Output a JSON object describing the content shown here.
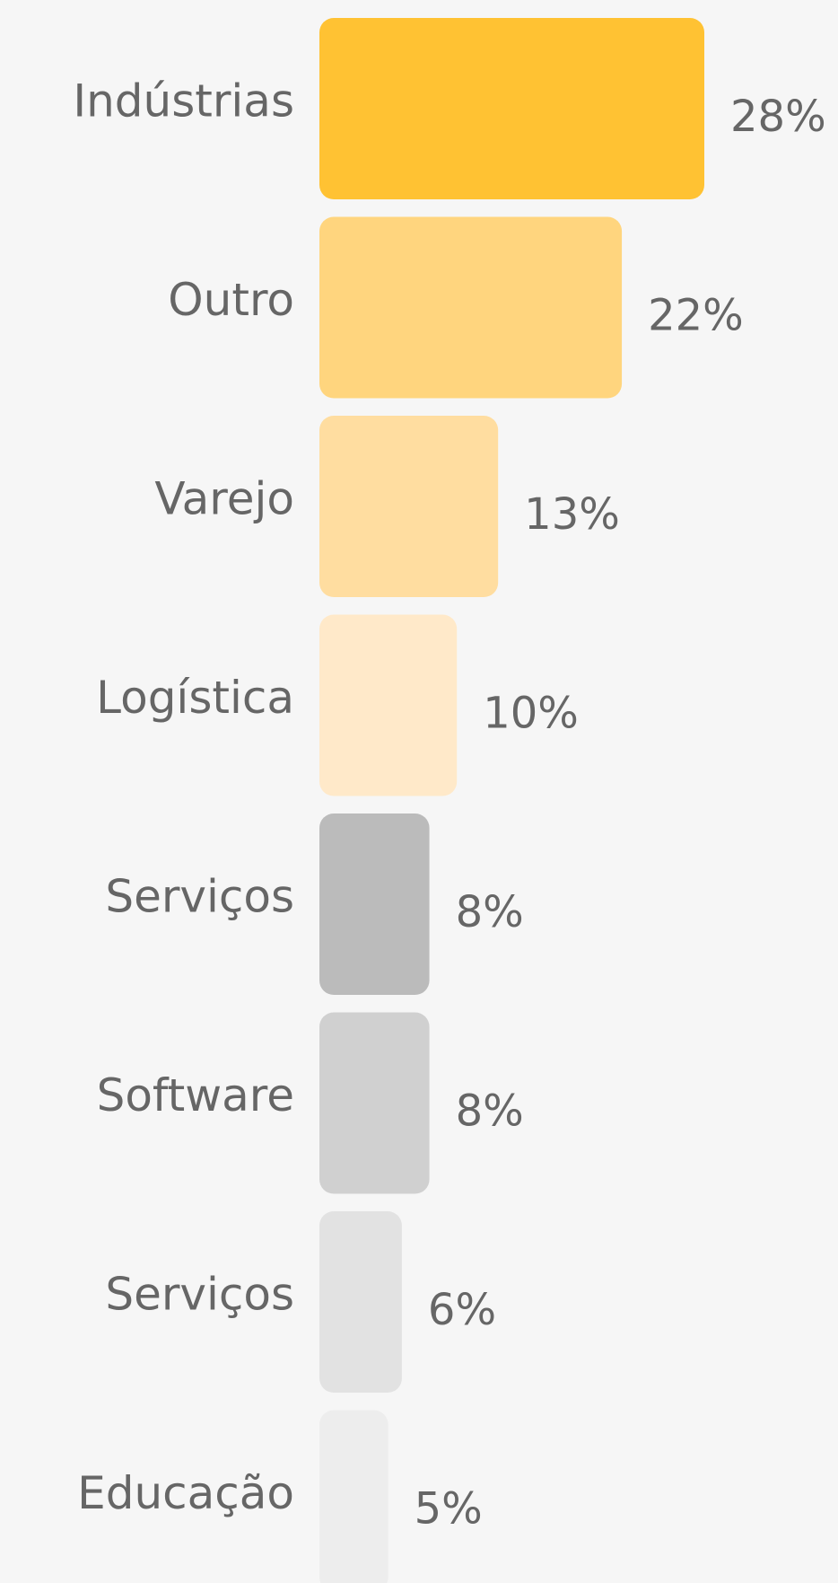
{
  "chart_data": {
    "type": "bar",
    "orientation": "horizontal",
    "categories": [
      "Indústrias",
      "Outro",
      "Varejo",
      "Logística",
      "Serviços",
      "Software",
      "Serviços",
      "Educação"
    ],
    "values": [
      28,
      22,
      13,
      10,
      8,
      8,
      6,
      5
    ],
    "value_labels": [
      "28%",
      "22%",
      "13%",
      "10%",
      "8%",
      "8%",
      "6%",
      "5%"
    ],
    "colors": [
      "#ffc233",
      "#ffd57e",
      "#ffdda0",
      "#ffe9c9",
      "#bbbbbb",
      "#d0d0d0",
      "#e2e2e2",
      "#ededed"
    ]
  }
}
